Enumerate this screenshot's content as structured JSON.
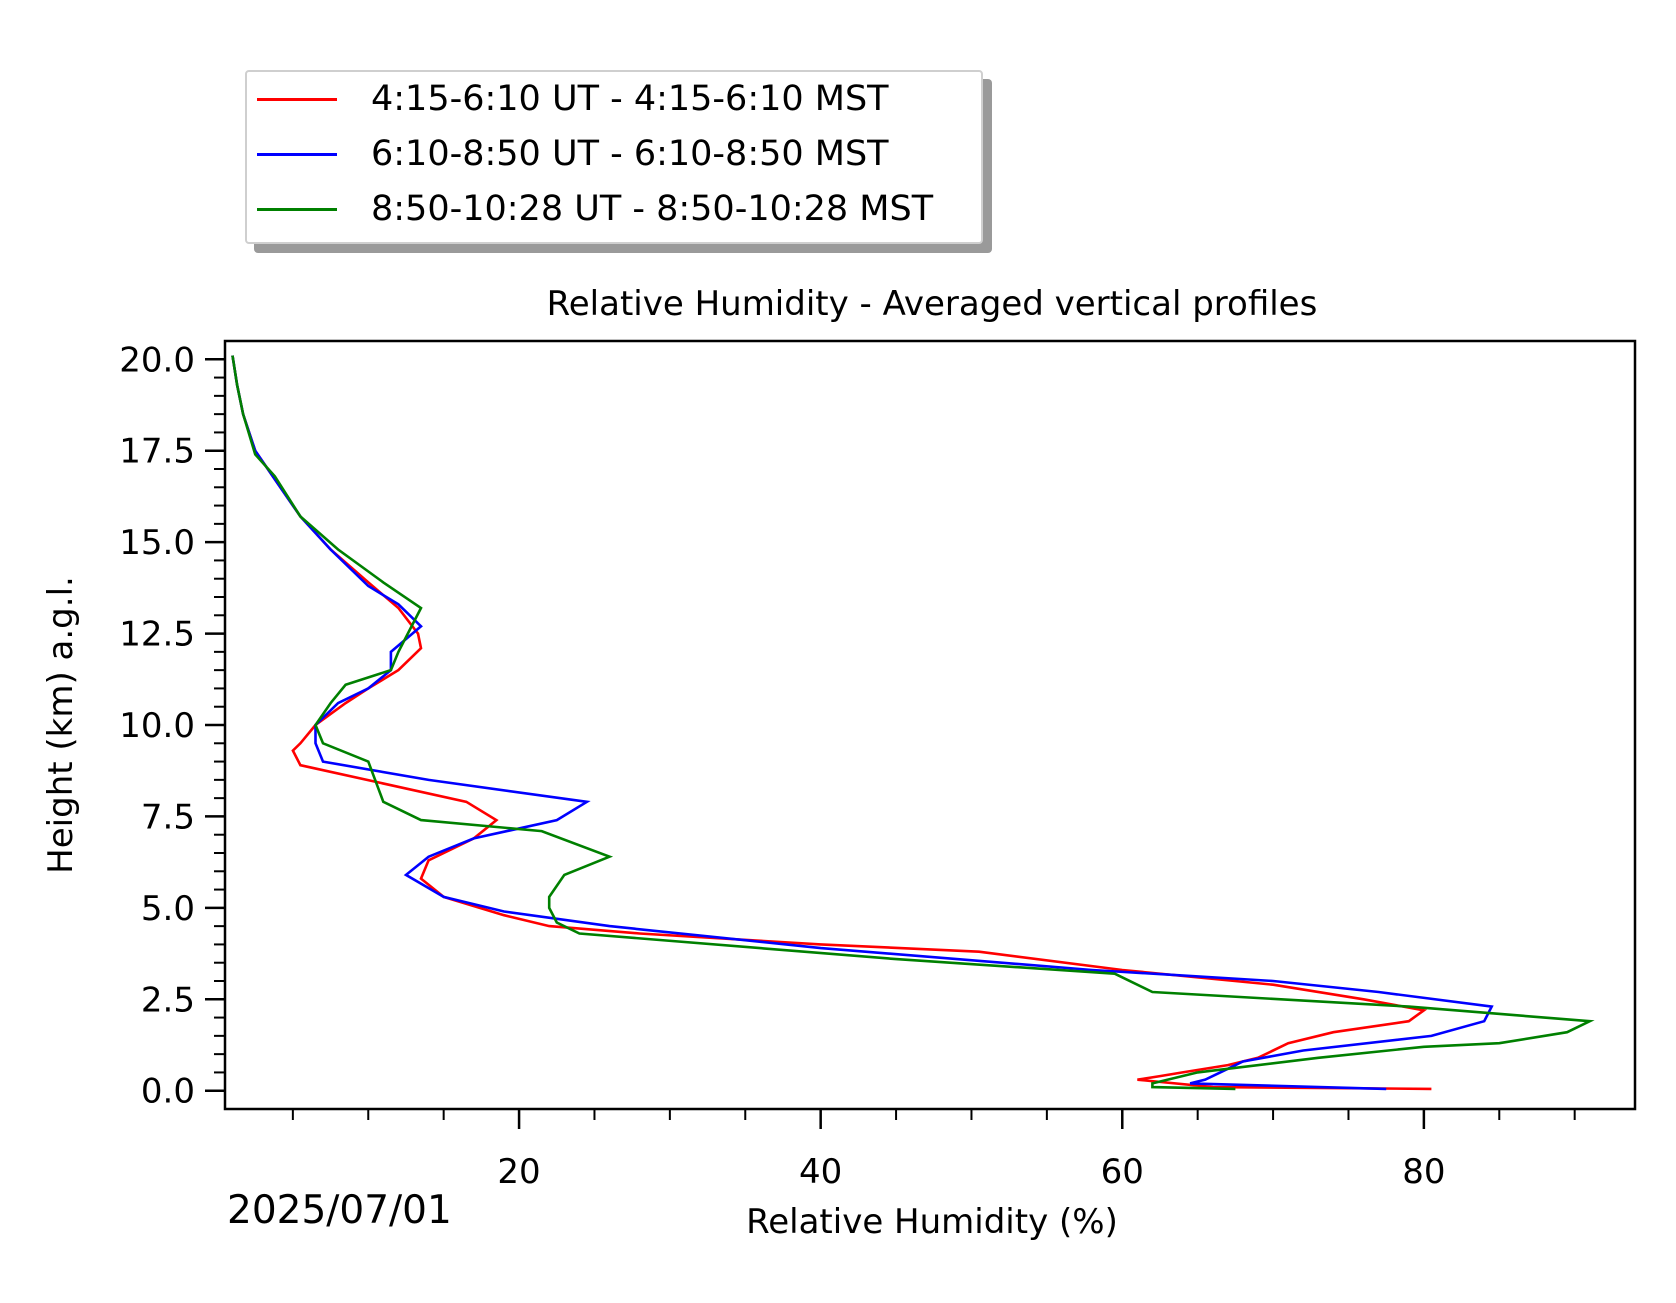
{
  "chart_data": {
    "type": "line",
    "title": "Relative Humidity - Averaged vertical profiles",
    "xlabel": "Relative Humidity (%)",
    "ylabel": "Height (km) a.g.l.",
    "xlim": [
      0.5,
      94
    ],
    "ylim": [
      -0.5,
      20.5
    ],
    "x_ticks": [
      20,
      40,
      60,
      80
    ],
    "x_tick_labels": [
      "20",
      "40",
      "60",
      "80"
    ],
    "y_ticks": [
      0.0,
      2.5,
      5.0,
      7.5,
      10.0,
      12.5,
      15.0,
      17.5,
      20.0
    ],
    "y_tick_labels": [
      "0.0",
      "2.5",
      "5.0",
      "7.5",
      "10.0",
      "12.5",
      "15.0",
      "17.5",
      "20.0"
    ],
    "legend_position": "top-left, outside axes",
    "date_label": "2025/07/01",
    "grid": false,
    "series": [
      {
        "name": "4:15-6:10 UT - 4:15-6:10 MST",
        "color": "#ff0000",
        "points": [
          [
            80.5,
            0.05
          ],
          [
            66,
            0.1
          ],
          [
            61,
            0.3
          ],
          [
            62.5,
            0.4
          ],
          [
            64,
            0.5
          ],
          [
            67,
            0.7
          ],
          [
            69,
            0.9
          ],
          [
            71,
            1.3
          ],
          [
            74,
            1.6
          ],
          [
            79,
            1.9
          ],
          [
            80,
            2.2
          ],
          [
            76,
            2.5
          ],
          [
            70,
            2.9
          ],
          [
            60,
            3.3
          ],
          [
            50.5,
            3.8
          ],
          [
            40,
            4.0
          ],
          [
            28,
            4.3
          ],
          [
            22,
            4.5
          ],
          [
            19,
            4.8
          ],
          [
            15,
            5.3
          ],
          [
            13.5,
            5.8
          ],
          [
            14,
            6.3
          ],
          [
            17,
            6.9
          ],
          [
            18.5,
            7.4
          ],
          [
            16.5,
            7.9
          ],
          [
            5.5,
            8.9
          ],
          [
            5,
            9.3
          ],
          [
            5.5,
            9.5
          ],
          [
            6.5,
            10.0
          ],
          [
            8.5,
            10.6
          ],
          [
            10,
            11.0
          ],
          [
            12,
            11.5
          ],
          [
            13.5,
            12.1
          ],
          [
            13.3,
            12.5
          ],
          [
            12,
            13.2
          ],
          [
            10,
            13.9
          ],
          [
            7.5,
            14.8
          ],
          [
            5.5,
            15.7
          ],
          [
            4,
            16.6
          ],
          [
            2.5,
            17.5
          ],
          [
            1.7,
            18.5
          ],
          [
            1.3,
            19.3
          ],
          [
            1.0,
            20.1
          ]
        ]
      },
      {
        "name": "6:10-8:50 UT - 6:10-8:50 MST",
        "color": "#0000ff",
        "points": [
          [
            77.5,
            0.05
          ],
          [
            64.5,
            0.2
          ],
          [
            65.5,
            0.3
          ],
          [
            67,
            0.6
          ],
          [
            68,
            0.8
          ],
          [
            72,
            1.1
          ],
          [
            80.5,
            1.5
          ],
          [
            84,
            1.9
          ],
          [
            84.5,
            2.3
          ],
          [
            77,
            2.7
          ],
          [
            70,
            3.0
          ],
          [
            58,
            3.3
          ],
          [
            40,
            3.9
          ],
          [
            26,
            4.5
          ],
          [
            19,
            4.9
          ],
          [
            15,
            5.3
          ],
          [
            12.5,
            5.9
          ],
          [
            14,
            6.4
          ],
          [
            17,
            6.9
          ],
          [
            22.5,
            7.4
          ],
          [
            24.5,
            7.9
          ],
          [
            14,
            8.5
          ],
          [
            7,
            9.0
          ],
          [
            6.5,
            9.5
          ],
          [
            6.5,
            10.0
          ],
          [
            8,
            10.6
          ],
          [
            10,
            11.0
          ],
          [
            11.5,
            11.5
          ],
          [
            11.5,
            12.0
          ],
          [
            13.5,
            12.7
          ],
          [
            12,
            13.3
          ],
          [
            10,
            13.8
          ],
          [
            7.5,
            14.8
          ],
          [
            5.5,
            15.7
          ],
          [
            4,
            16.6
          ],
          [
            2.5,
            17.5
          ],
          [
            1.7,
            18.5
          ],
          [
            1.3,
            19.3
          ],
          [
            1.0,
            20.1
          ]
        ]
      },
      {
        "name": "8:50-10:28 UT - 8:50-10:28 MST",
        "color": "#008000",
        "points": [
          [
            67.5,
            0.05
          ],
          [
            62,
            0.1
          ],
          [
            62,
            0.2
          ],
          [
            65,
            0.5
          ],
          [
            73,
            0.9
          ],
          [
            80,
            1.2
          ],
          [
            85,
            1.3
          ],
          [
            89.5,
            1.6
          ],
          [
            91,
            1.9
          ],
          [
            79,
            2.3
          ],
          [
            62,
            2.7
          ],
          [
            59.5,
            3.2
          ],
          [
            45,
            3.6
          ],
          [
            24,
            4.3
          ],
          [
            22.5,
            4.6
          ],
          [
            22,
            5.0
          ],
          [
            22,
            5.3
          ],
          [
            23,
            5.9
          ],
          [
            26,
            6.4
          ],
          [
            21.5,
            7.1
          ],
          [
            13.5,
            7.4
          ],
          [
            11,
            7.9
          ],
          [
            10,
            9.0
          ],
          [
            7,
            9.5
          ],
          [
            6.5,
            10.0
          ],
          [
            7.5,
            10.6
          ],
          [
            8.5,
            11.1
          ],
          [
            11.5,
            11.5
          ],
          [
            12,
            12.0
          ],
          [
            13.5,
            13.2
          ],
          [
            11,
            13.9
          ],
          [
            8,
            14.8
          ],
          [
            5.5,
            15.7
          ],
          [
            3.8,
            16.8
          ],
          [
            2.5,
            17.4
          ],
          [
            1.7,
            18.5
          ],
          [
            1.3,
            19.3
          ],
          [
            1.0,
            20.1
          ]
        ]
      }
    ]
  }
}
